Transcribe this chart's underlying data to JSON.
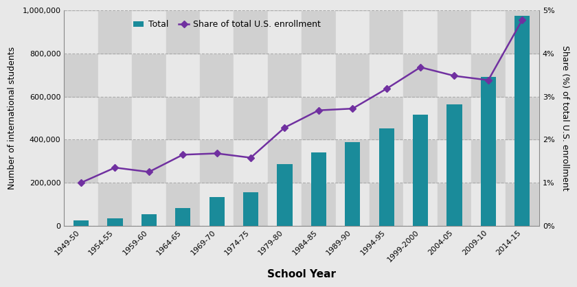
{
  "categories": [
    "1949-50",
    "1954-55",
    "1959-60",
    "1964-65",
    "1969-70",
    "1974-75",
    "1979-80",
    "1984-85",
    "1989-90",
    "1994-95",
    "1999-2000",
    "2004-05",
    "2009-10",
    "2014-15"
  ],
  "bar_values": [
    26433,
    34232,
    53107,
    82045,
    134959,
    154580,
    286343,
    342110,
    386851,
    452635,
    514723,
    565039,
    690923,
    974926
  ],
  "line_values": [
    1.0,
    1.35,
    1.25,
    1.65,
    1.68,
    1.58,
    2.28,
    2.68,
    2.72,
    3.18,
    3.68,
    3.48,
    3.38,
    4.78
  ],
  "bar_color": "#1A8B9A",
  "line_color": "#7030A0",
  "bar_label": "Total",
  "line_label": "Share of total U.S. enrollment",
  "ylabel_left": "Number of international students",
  "ylabel_right": "Share (%) of total U.S. enrollment",
  "xlabel": "School Year",
  "ylim_left": [
    0,
    1000000
  ],
  "ylim_right": [
    0,
    5
  ],
  "yticks_left": [
    0,
    200000,
    400000,
    600000,
    800000,
    1000000
  ],
  "yticks_right": [
    0,
    1,
    2,
    3,
    4,
    5
  ],
  "bg_light": "#e8e8e8",
  "bg_dark": "#d0d0d0",
  "grid_color": "#aaaaaa",
  "axis_fontsize": 9,
  "tick_fontsize": 8,
  "bar_width": 0.45
}
